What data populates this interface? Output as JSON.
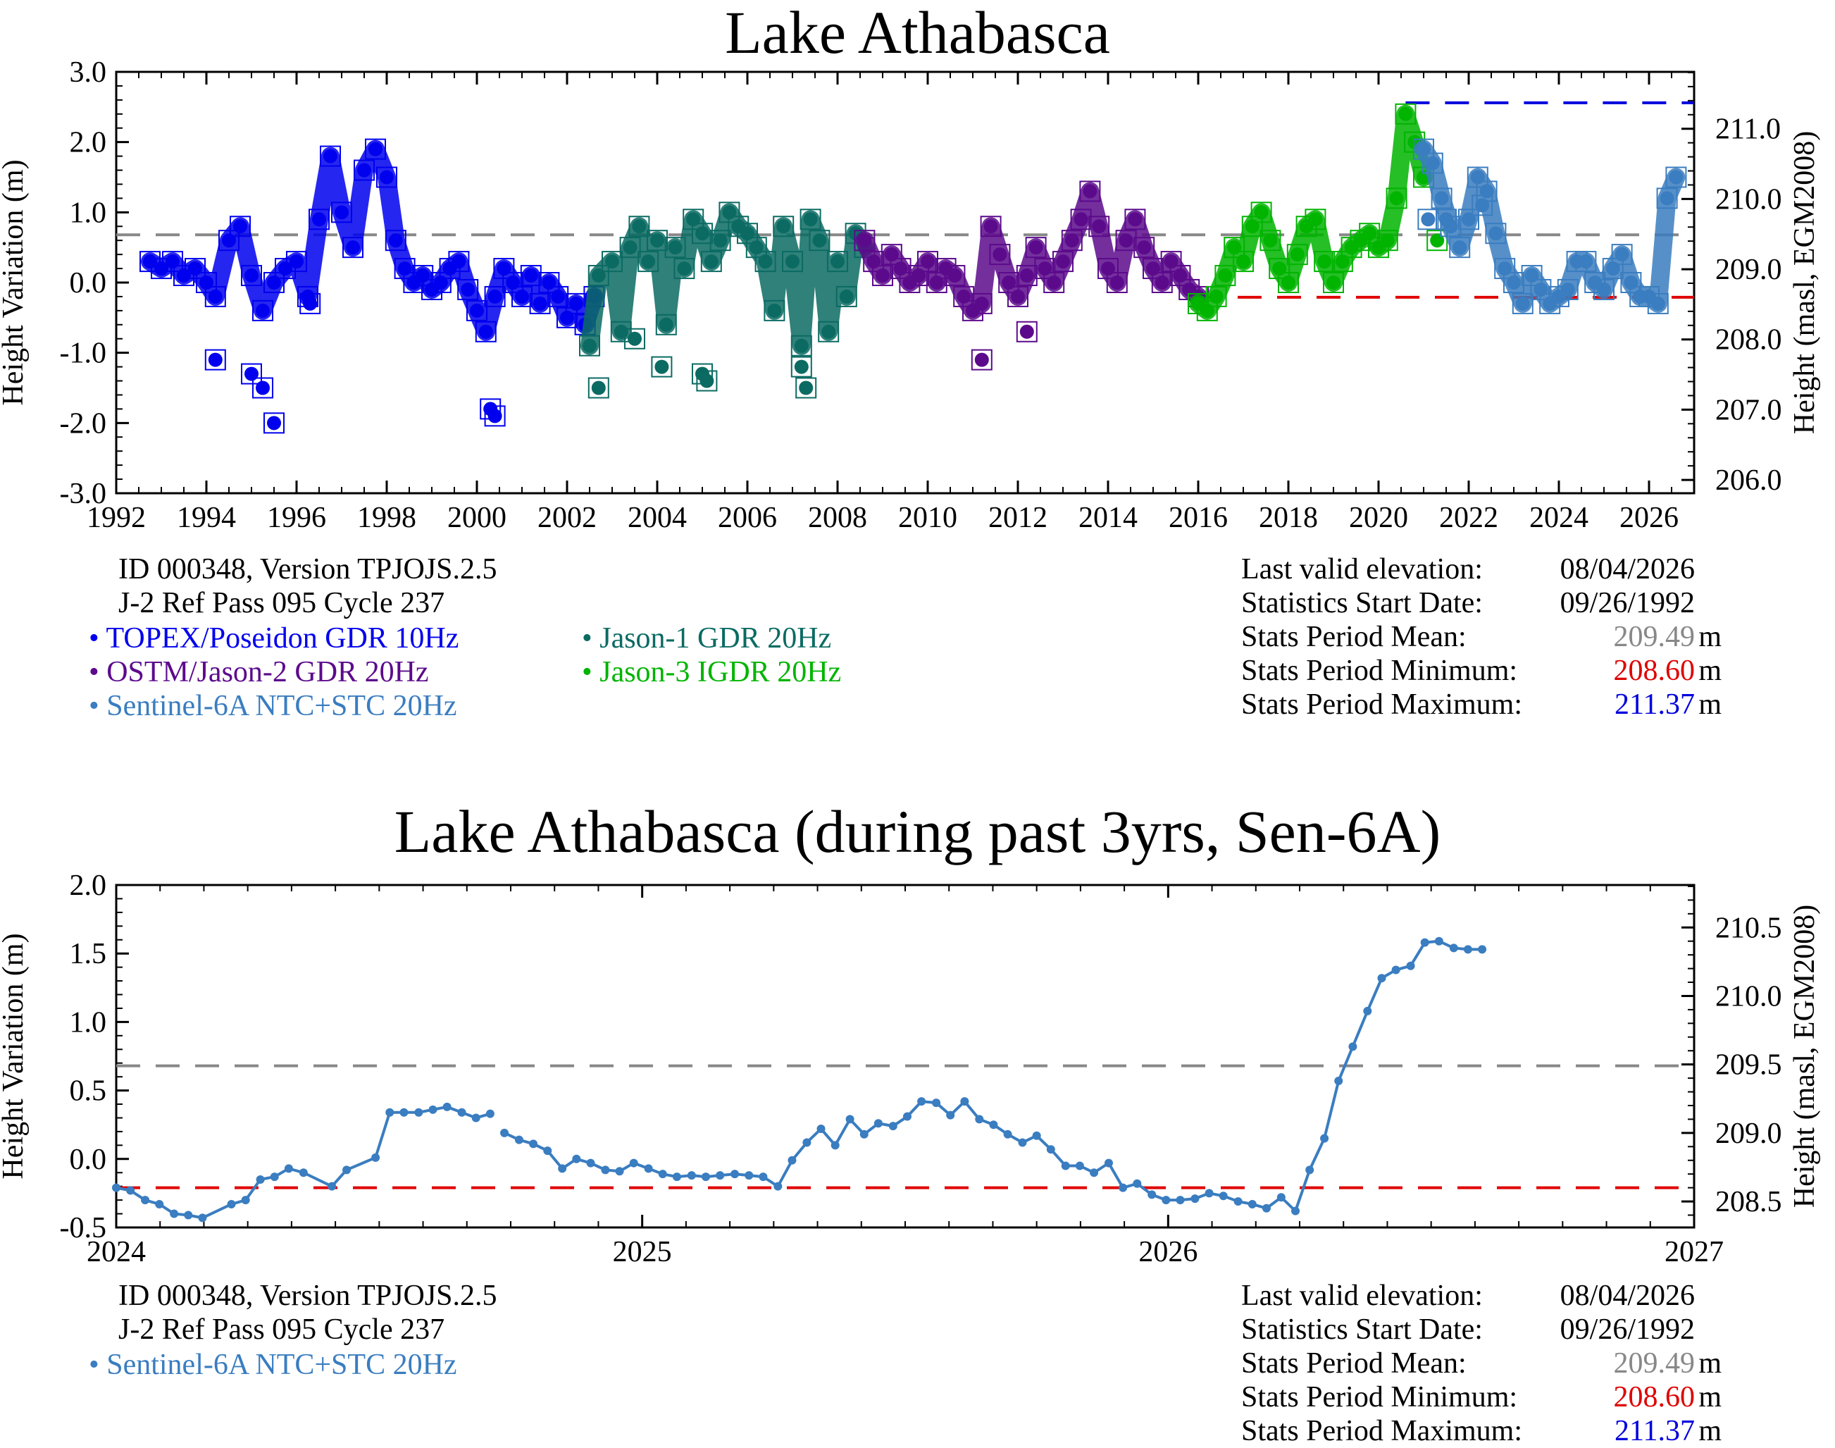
{
  "colors": {
    "topex": "#0000ee",
    "jason1": "#0b6b63",
    "ostm": "#5c0a8c",
    "jason3": "#00b400",
    "sentinel": "#3a7dc0",
    "mean": "#888888",
    "minimum": "#e00000",
    "maximum": "#0000dd"
  },
  "top": {
    "title": "Lake Athabasca",
    "info": [
      "ID 000348, Version TPJOJS.2.5",
      "J-2 Ref Pass 095 Cycle 237"
    ],
    "legend": [
      {
        "label": "TOPEX/Poseidon GDR 10Hz",
        "color": "#0000ee"
      },
      {
        "label": "Jason-1 GDR 20Hz",
        "color": "#0b6b63"
      },
      {
        "label": "OSTM/Jason-2 GDR 20Hz",
        "color": "#5c0a8c"
      },
      {
        "label": "Jason-3 IGDR 20Hz",
        "color": "#00b400"
      },
      {
        "label": "Sentinel-6A NTC+STC 20Hz",
        "color": "#3a7dc0"
      }
    ],
    "stats": {
      "last_valid_label": "Last valid elevation:",
      "last_valid_value": "08/04/2026",
      "start_label": "Statistics Start Date:",
      "start_value": "09/26/1992",
      "mean_label": "Stats Period Mean:",
      "mean_value": "209.49",
      "min_label": "Stats Period Minimum:",
      "min_value": "208.60",
      "max_label": "Stats Period Maximum:",
      "max_value": "211.37",
      "unit": "m"
    }
  },
  "bottom": {
    "title": "Lake Athabasca (during past 3yrs, Sen-6A)",
    "info": [
      "ID 000348, Version TPJOJS.2.5",
      "J-2 Ref Pass 095 Cycle 237"
    ],
    "legend": [
      {
        "label": "Sentinel-6A NTC+STC 20Hz",
        "color": "#3a7dc0"
      }
    ],
    "stats": {
      "last_valid_label": "Last valid elevation:",
      "last_valid_value": "08/04/2026",
      "start_label": "Statistics Start Date:",
      "start_value": "09/26/1992",
      "mean_label": "Stats Period Mean:",
      "mean_value": "209.49",
      "min_label": "Stats Period Minimum:",
      "min_value": "208.60",
      "max_label": "Stats Period Maximum:",
      "max_value": "211.37",
      "unit": "m"
    }
  },
  "chart_data": [
    {
      "type": "scatter",
      "title": "Lake Athabasca",
      "ylabel": "Height Variation (m)",
      "ylabel_right": "Height (masl, EGM2008)",
      "xlim": [
        1992,
        2027
      ],
      "ylim": [
        -3.0,
        3.0
      ],
      "ylim_right": [
        205.81,
        211.81
      ],
      "xticks": [
        "1992",
        "1994",
        "1996",
        "1998",
        "2000",
        "2002",
        "2004",
        "2006",
        "2008",
        "2010",
        "2012",
        "2014",
        "2016",
        "2018",
        "2020",
        "2022",
        "2024",
        "2026"
      ],
      "yticks": [
        "-3.0",
        "-2.0",
        "-1.0",
        "0.0",
        "1.0",
        "2.0",
        "3.0"
      ],
      "yticks_right": [
        "206.0",
        "207.0",
        "208.0",
        "209.0",
        "210.0",
        "211.0"
      ],
      "grid": false,
      "mean_line": 0.68,
      "min_line": -0.21,
      "max_line": 2.56,
      "series": [
        {
          "name": "TOPEX/Poseidon GDR 10Hz",
          "color": "#0000ee",
          "x": [
            1992.75,
            1993.0,
            1993.25,
            1993.5,
            1993.75,
            1994.0,
            1994.2,
            1994.5,
            1994.75,
            1995.0,
            1995.25,
            1995.5,
            1995.75,
            1996.0,
            1996.25,
            1996.5,
            1996.75,
            1997.0,
            1997.25,
            1997.5,
            1997.75,
            1998.0,
            1998.2,
            1998.4,
            1998.6,
            1998.8,
            1999.0,
            1999.2,
            1999.4,
            1999.6,
            1999.8,
            2000.0,
            2000.2,
            2000.4,
            2000.6,
            2000.8,
            2001.0,
            2001.2,
            2001.4,
            2001.6,
            2001.8,
            2002.0,
            2002.2,
            2002.4,
            2002.6
          ],
          "y": [
            0.3,
            0.2,
            0.3,
            0.1,
            0.2,
            0.0,
            -0.2,
            0.6,
            0.8,
            0.1,
            -0.4,
            0.0,
            0.2,
            0.3,
            -0.2,
            0.9,
            1.8,
            1.0,
            0.5,
            1.6,
            1.9,
            1.5,
            0.6,
            0.2,
            0.0,
            0.1,
            -0.1,
            0.0,
            0.2,
            0.3,
            -0.1,
            -0.4,
            -0.7,
            -0.2,
            0.2,
            0.0,
            -0.2,
            0.1,
            -0.3,
            0.0,
            -0.2,
            -0.5,
            -0.3,
            -0.6,
            -0.2
          ]
        },
        {
          "name": "TOPEX/Poseidon GDR 10Hz outliers",
          "color": "#0000ee",
          "x": [
            1994.2,
            1995.0,
            1995.25,
            1995.5,
            1996.3,
            2000.3,
            2000.4
          ],
          "y": [
            -1.1,
            -1.3,
            -1.5,
            -2.0,
            -0.3,
            -1.8,
            -1.9
          ]
        },
        {
          "name": "Jason-1 GDR 20Hz",
          "color": "#0b6b63",
          "x": [
            2002.5,
            2002.7,
            2003.0,
            2003.2,
            2003.4,
            2003.6,
            2003.8,
            2004.0,
            2004.2,
            2004.4,
            2004.6,
            2004.8,
            2005.0,
            2005.2,
            2005.4,
            2005.6,
            2005.8,
            2006.0,
            2006.2,
            2006.4,
            2006.6,
            2006.8,
            2007.0,
            2007.2,
            2007.4,
            2007.6,
            2007.8,
            2008.0,
            2008.2,
            2008.4,
            2008.6
          ],
          "y": [
            -0.9,
            0.1,
            0.3,
            -0.7,
            0.5,
            0.8,
            0.3,
            0.6,
            -0.6,
            0.5,
            0.2,
            0.9,
            0.7,
            0.3,
            0.6,
            1.0,
            0.8,
            0.7,
            0.5,
            0.3,
            -0.4,
            0.8,
            0.3,
            -0.9,
            0.9,
            0.6,
            -0.7,
            0.3,
            -0.2,
            0.7,
            0.5
          ]
        },
        {
          "name": "Jason-1 GDR 20Hz outliers",
          "color": "#0b6b63",
          "x": [
            2002.7,
            2003.5,
            2004.1,
            2005.0,
            2005.1,
            2007.2,
            2007.3
          ],
          "y": [
            -1.5,
            -0.8,
            -1.2,
            -1.3,
            -1.4,
            -1.2,
            -1.5
          ]
        },
        {
          "name": "OSTM/Jason-2 GDR 20Hz",
          "color": "#5c0a8c",
          "x": [
            2008.6,
            2008.8,
            2009.0,
            2009.2,
            2009.4,
            2009.6,
            2009.8,
            2010.0,
            2010.2,
            2010.4,
            2010.6,
            2010.8,
            2011.0,
            2011.2,
            2011.4,
            2011.6,
            2011.8,
            2012.0,
            2012.2,
            2012.4,
            2012.6,
            2012.8,
            2013.0,
            2013.2,
            2013.4,
            2013.6,
            2013.8,
            2014.0,
            2014.2,
            2014.4,
            2014.6,
            2014.8,
            2015.0,
            2015.2,
            2015.4,
            2015.6,
            2015.8,
            2016.0
          ],
          "y": [
            0.6,
            0.3,
            0.1,
            0.4,
            0.2,
            0.0,
            0.1,
            0.3,
            0.0,
            0.2,
            0.1,
            -0.2,
            -0.4,
            -0.3,
            0.8,
            0.4,
            0.0,
            -0.2,
            0.1,
            0.5,
            0.2,
            0.0,
            0.3,
            0.6,
            0.9,
            1.3,
            0.8,
            0.2,
            0.0,
            0.6,
            0.9,
            0.5,
            0.2,
            0.0,
            0.3,
            0.1,
            -0.1,
            -0.2
          ]
        },
        {
          "name": "OSTM/Jason-2 GDR 20Hz outliers",
          "color": "#5c0a8c",
          "x": [
            2011.2,
            2012.2
          ],
          "y": [
            -1.1,
            -0.7
          ]
        },
        {
          "name": "Jason-3 IGDR 20Hz",
          "color": "#00b400",
          "x": [
            2016.0,
            2016.2,
            2016.4,
            2016.6,
            2016.8,
            2017.0,
            2017.2,
            2017.4,
            2017.6,
            2017.8,
            2018.0,
            2018.2,
            2018.4,
            2018.6,
            2018.8,
            2019.0,
            2019.2,
            2019.4,
            2019.6,
            2019.8,
            2020.0,
            2020.2,
            2020.4,
            2020.6,
            2020.8,
            2021.0
          ],
          "y": [
            -0.3,
            -0.4,
            -0.2,
            0.1,
            0.5,
            0.3,
            0.8,
            1.0,
            0.6,
            0.2,
            0.0,
            0.4,
            0.8,
            0.9,
            0.3,
            0.0,
            0.3,
            0.5,
            0.6,
            0.7,
            0.5,
            0.6,
            1.2,
            2.4,
            2.0,
            1.5
          ]
        },
        {
          "name": "Jason-3 IGDR 20Hz outliers",
          "color": "#00b400",
          "x": [
            2021.3
          ],
          "y": [
            0.6
          ]
        },
        {
          "name": "Sentinel-6A NTC+STC 20Hz",
          "color": "#3a7dc0",
          "x": [
            2021.0,
            2021.2,
            2021.4,
            2021.6,
            2021.8,
            2022.0,
            2022.2,
            2022.4,
            2022.6,
            2022.8,
            2023.0,
            2023.2,
            2023.4,
            2023.6,
            2023.8,
            2024.0,
            2024.2,
            2024.4,
            2024.6,
            2024.8,
            2025.0,
            2025.2,
            2025.4,
            2025.6,
            2025.8,
            2026.0,
            2026.2,
            2026.4,
            2026.6
          ],
          "y": [
            1.9,
            1.7,
            1.2,
            0.8,
            0.5,
            0.9,
            1.5,
            1.3,
            0.7,
            0.2,
            0.0,
            -0.3,
            0.1,
            -0.1,
            -0.3,
            -0.2,
            -0.1,
            0.3,
            0.3,
            0.0,
            -0.1,
            0.2,
            0.4,
            0.0,
            -0.2,
            -0.2,
            -0.3,
            1.2,
            1.5
          ]
        },
        {
          "name": "Sentinel-6A NTC+STC 20Hz outliers",
          "color": "#3a7dc0",
          "x": [
            2021.1,
            2021.5,
            2022.3
          ],
          "y": [
            0.9,
            0.9,
            1.1
          ]
        }
      ]
    },
    {
      "type": "line",
      "title": "Lake Athabasca (during past 3yrs, Sen-6A)",
      "ylabel": "Height Variation (m)",
      "ylabel_right": "Height (masl, EGM2008)",
      "xlim": [
        2024,
        2027
      ],
      "ylim": [
        -0.5,
        2.0
      ],
      "ylim_right": [
        208.31,
        210.81
      ],
      "xticks": [
        "2024",
        "2025",
        "2026",
        "2027"
      ],
      "yticks": [
        "-0.5",
        "0.0",
        "0.5",
        "1.0",
        "1.5",
        "2.0"
      ],
      "yticks_right": [
        "208.5",
        "209.0",
        "209.5",
        "210.0",
        "210.5"
      ],
      "grid": false,
      "mean_line": 0.68,
      "min_line": -0.21,
      "series": [
        {
          "name": "Sentinel-6A NTC+STC 20Hz",
          "color": "#3a7dc0",
          "segments": [
            {
              "x": [
                2024.0,
                2024.027,
                2024.055,
                2024.082,
                2024.11,
                2024.137,
                2024.164,
                2024.219,
                2024.246,
                2024.274,
                2024.301,
                2024.328,
                2024.356,
                2024.41,
                2024.438,
                2024.493,
                2024.52,
                2024.547,
                2024.575,
                2024.602,
                2024.629,
                2024.657,
                2024.684,
                2024.711
              ],
              "y": [
                -0.21,
                -0.23,
                -0.3,
                -0.33,
                -0.4,
                -0.41,
                -0.43,
                -0.33,
                -0.3,
                -0.15,
                -0.13,
                -0.07,
                -0.1,
                -0.2,
                -0.08,
                0.01,
                0.34,
                0.34,
                0.34,
                0.36,
                0.38,
                0.34,
                0.3,
                0.33
              ]
            },
            {
              "x": [
                2024.738,
                2024.766,
                2024.793,
                2024.82,
                2024.848,
                2024.875,
                2024.902,
                2024.93,
                2024.957,
                2024.984,
                2025.012,
                2025.039,
                2025.066,
                2025.094,
                2025.121,
                2025.148,
                2025.176,
                2025.203,
                2025.23,
                2025.258,
                2025.285,
                2025.313,
                2025.34,
                2025.367,
                2025.395,
                2025.422,
                2025.449,
                2025.477,
                2025.504,
                2025.531,
                2025.559,
                2025.586,
                2025.613,
                2025.641,
                2025.668,
                2025.695,
                2025.723,
                2025.75,
                2025.777,
                2025.805,
                2025.832,
                2025.859,
                2025.887,
                2025.914,
                2025.941,
                2025.969,
                2025.996,
                2026.023,
                2026.051,
                2026.078,
                2026.105,
                2026.133,
                2026.16,
                2026.187,
                2026.215,
                2026.242,
                2026.269,
                2026.297,
                2026.324,
                2026.351,
                2026.379,
                2026.406,
                2026.433,
                2026.461,
                2026.488,
                2026.515,
                2026.543,
                2026.57,
                2026.597
              ],
              "y": [
                0.19,
                0.14,
                0.11,
                0.06,
                -0.07,
                0.0,
                -0.03,
                -0.08,
                -0.09,
                -0.03,
                -0.07,
                -0.11,
                -0.13,
                -0.12,
                -0.13,
                -0.12,
                -0.11,
                -0.12,
                -0.13,
                -0.2,
                -0.01,
                0.12,
                0.22,
                0.1,
                0.29,
                0.18,
                0.26,
                0.24,
                0.31,
                0.42,
                0.41,
                0.32,
                0.42,
                0.29,
                0.25,
                0.18,
                0.12,
                0.17,
                0.07,
                -0.05,
                -0.05,
                -0.1,
                -0.03,
                -0.21,
                -0.18,
                -0.26,
                -0.3,
                -0.3,
                -0.29,
                -0.25,
                -0.27,
                -0.31,
                -0.33,
                -0.36,
                -0.28,
                -0.38,
                -0.08,
                0.15,
                0.57,
                0.82,
                1.08,
                1.32,
                1.38,
                1.41,
                1.58,
                1.59,
                1.54,
                1.53,
                1.53
              ]
            }
          ]
        }
      ]
    }
  ]
}
